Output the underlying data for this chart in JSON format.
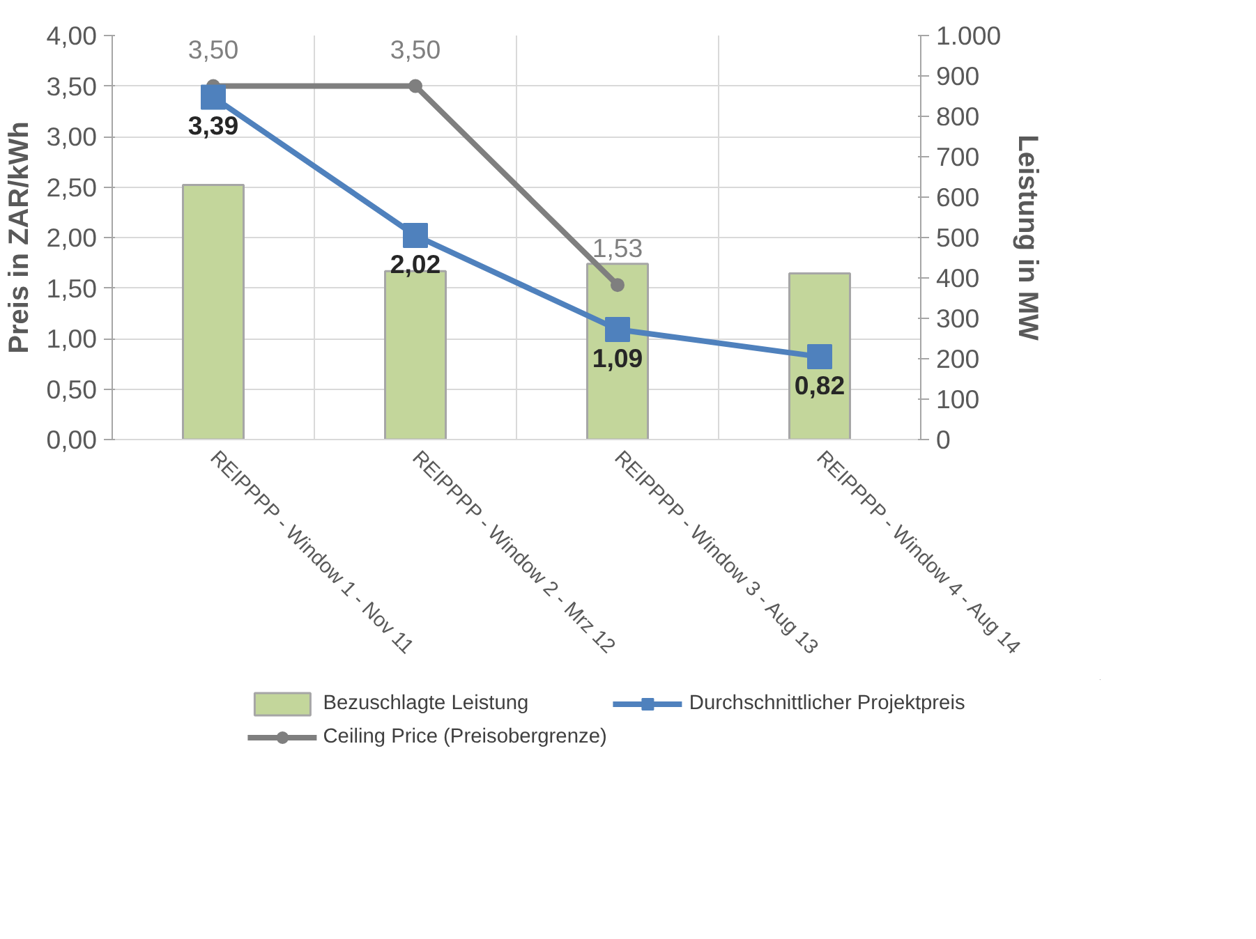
{
  "chart_data": {
    "type": "bar",
    "ylabel": "Preis in ZAR/kWh",
    "y2label": "Leistung in MW",
    "categories": [
      "REIPPPP - Window 1 - Nov 11",
      "REIPPPP - Window 2 - Mrz 12",
      "REIPPPP - Window 3 - Aug 13",
      "REIPPPP - Window 4 - Aug 14"
    ],
    "series": [
      {
        "name": "Bezuschlagte Leistung",
        "axis": "y2",
        "color": "#c3d69b",
        "values": [
          630,
          417,
          435,
          411
        ]
      },
      {
        "name": "Ceiling Price (Preisobergrenze)",
        "type": "line",
        "color": "#7f7f7f",
        "marker": "circle",
        "values": [
          3.5,
          3.5,
          1.53,
          null
        ],
        "value_labels": [
          "3,50",
          "3,50",
          "1,53",
          null
        ]
      },
      {
        "name": "Durchschnittlicher Projektpreis",
        "type": "line",
        "color": "#4f81bd",
        "marker": "square",
        "values": [
          3.39,
          2.02,
          1.09,
          0.82
        ],
        "value_labels": [
          "3,39",
          "2,02",
          "1,09",
          "0,82"
        ]
      }
    ],
    "ylim": [
      0,
      4
    ],
    "yticks": [
      {
        "value": 0,
        "label": "0,00"
      },
      {
        "value": 0.5,
        "label": "0,50"
      },
      {
        "value": 1,
        "label": "1,00"
      },
      {
        "value": 1.5,
        "label": "1,50"
      },
      {
        "value": 2,
        "label": "2,00"
      },
      {
        "value": 2.5,
        "label": "2,50"
      },
      {
        "value": 3,
        "label": "3,00"
      },
      {
        "value": 3.5,
        "label": "3,50"
      },
      {
        "value": 4,
        "label": "4,00"
      }
    ],
    "y2lim": [
      0,
      1000
    ],
    "y2ticks": [
      0,
      100,
      200,
      300,
      400,
      500,
      600,
      700,
      800,
      900,
      {
        "value": 1000,
        "label": "1.000"
      }
    ],
    "grid": true,
    "legend": "bottom"
  }
}
